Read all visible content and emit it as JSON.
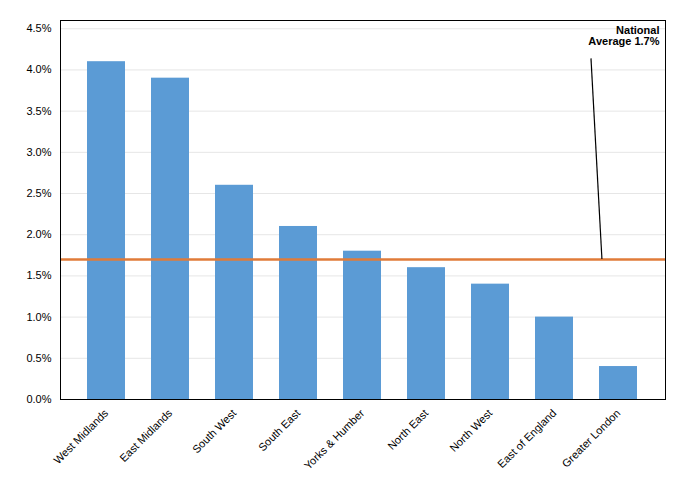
{
  "chart_data": {
    "type": "bar",
    "categories": [
      "West Midlands",
      "East Midlands",
      "South West",
      "South East",
      "Yorks & Humber",
      "North East",
      "North West",
      "East of England",
      "Greater London"
    ],
    "values": [
      0.041,
      0.039,
      0.026,
      0.021,
      0.018,
      0.016,
      0.014,
      0.01,
      0.004
    ],
    "color": "#5B9BD5",
    "ylim": [
      0,
      0.046
    ],
    "yticks": [
      {
        "value": 0.0,
        "label": "0.0%"
      },
      {
        "value": 0.005,
        "label": "0.5%"
      },
      {
        "value": 0.01,
        "label": "1.0%"
      },
      {
        "value": 0.015,
        "label": "1.5%"
      },
      {
        "value": 0.02,
        "label": "2.0%"
      },
      {
        "value": 0.025,
        "label": "2.5%"
      },
      {
        "value": 0.03,
        "label": "3.0%"
      },
      {
        "value": 0.035,
        "label": "3.5%"
      },
      {
        "value": 0.04,
        "label": "4.0%"
      },
      {
        "value": 0.045,
        "label": "4.5%"
      }
    ],
    "grid": true,
    "reference_lines": [
      {
        "value": 0.017,
        "color": "#E07B39"
      }
    ],
    "annotations": [
      {
        "text": "National\nAverage 1.7%"
      }
    ]
  }
}
